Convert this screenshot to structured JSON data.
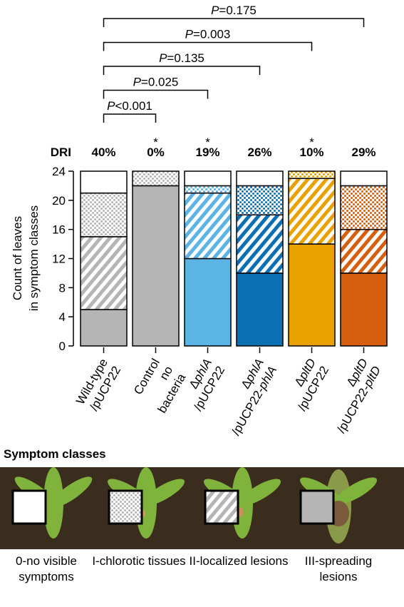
{
  "chart_data": {
    "type": "stacked_bar",
    "ylabel": [
      "Count of leaves",
      "in symptom classes"
    ],
    "categories": [
      "Wild-type /pUCP22",
      "Control no bacteria",
      "ΔphlA /pUCP22",
      "ΔphlA /pUCP22-phlA",
      "ΔpltD /pUCP22",
      "ΔpltD /pUCP22-pltD"
    ],
    "bar_colors": [
      "#b5b5b5",
      "#b5b5b5",
      "#5bb3e6",
      "#0b6fb3",
      "#e9a100",
      "#d65f0f"
    ],
    "series": [
      {
        "name": "0-no visible symptoms",
        "fill": "none",
        "values": [
          3,
          0,
          2,
          2,
          0,
          2
        ]
      },
      {
        "name": "I-chlorotic tissues",
        "fill": "dots",
        "values": [
          6,
          2,
          1,
          4,
          1,
          6
        ]
      },
      {
        "name": "II-localized lesions",
        "fill": "stripes",
        "values": [
          10,
          0,
          9,
          8,
          9,
          6
        ]
      },
      {
        "name": "III-spreading lesions",
        "fill": "solid",
        "values": [
          5,
          22,
          12,
          10,
          14,
          10
        ]
      }
    ],
    "ylim": [
      0,
      24
    ],
    "yticks": [
      0,
      4,
      8,
      12,
      16,
      20,
      24
    ],
    "dri": {
      "label": "DRI",
      "values": [
        40,
        0,
        19,
        26,
        10,
        29
      ],
      "value_labels": [
        "40%",
        "0%",
        "19%",
        "26%",
        "10%",
        "29%"
      ]
    },
    "significant": [
      false,
      true,
      true,
      false,
      true,
      false
    ],
    "star_symbol": "*",
    "comparisons": [
      {
        "label": "P<0.001",
        "from": 0,
        "to": 1
      },
      {
        "label": "P=0.025",
        "from": 0,
        "to": 2
      },
      {
        "label": "P=0.135",
        "from": 0,
        "to": 3
      },
      {
        "label": "P=0.003",
        "from": 0,
        "to": 4
      },
      {
        "label": "P=0.175",
        "from": 0,
        "to": 5
      }
    ],
    "legend_title": "Symptom classes"
  }
}
